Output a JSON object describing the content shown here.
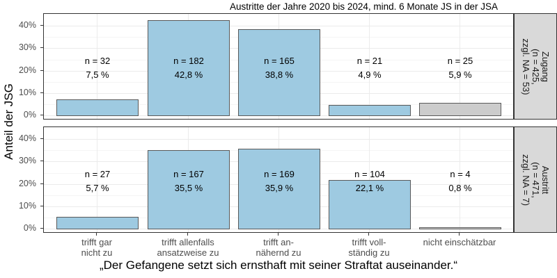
{
  "chart_data": {
    "type": "bar",
    "title": "Austritte der Jahre 2020 bis 2024, mind. 6 Monate JS in der JSA",
    "xlabel": "„Der Gefangene setzt sich ernsthaft mit seiner Straftat auseinander.“",
    "ylabel": "Anteil der JSG",
    "ylim": [
      0,
      45
    ],
    "yticks": [
      "0%",
      "10%",
      "20%",
      "30%",
      "40%"
    ],
    "grid": true,
    "categories": [
      "trifft gar nicht zu",
      "trifft allenfalls ansatzweise zu",
      "trifft annähernd zu",
      "trifft vollständig zu",
      "nicht einschätzbar"
    ],
    "category_labels": [
      [
        "trifft gar",
        "nicht zu"
      ],
      [
        "trifft allenfalls",
        "ansatzweise zu"
      ],
      [
        "trifft an-",
        "nähernd zu"
      ],
      [
        "trifft voll-",
        "ständig zu"
      ],
      [
        "nicht einschätzbar",
        ""
      ]
    ],
    "colors": {
      "answer": "#9ecae1",
      "not_assessable": "#cccccc",
      "strip": "#d9d9d9"
    },
    "series": [
      {
        "name": "Zugang",
        "strip_label": [
          "Zugang",
          "(n = 425,",
          "zzgl. NA = 53)"
        ],
        "n": [
          32,
          182,
          165,
          21,
          25
        ],
        "values": [
          7.5,
          42.8,
          38.8,
          4.9,
          5.9
        ],
        "n_labels": [
          "n = 32",
          "n = 182",
          "n = 165",
          "n = 21",
          "n = 25"
        ],
        "pct_labels": [
          "7,5 %",
          "42,8 %",
          "38,8 %",
          "4,9 %",
          "5,9 %"
        ]
      },
      {
        "name": "Austritt",
        "strip_label": [
          "Austritt",
          "(n = 471,",
          "zzgl. NA = 7)"
        ],
        "n": [
          27,
          167,
          169,
          104,
          4
        ],
        "values": [
          5.7,
          35.5,
          35.9,
          22.1,
          0.8
        ],
        "n_labels": [
          "n = 27",
          "n = 167",
          "n = 169",
          "n = 104",
          "n = 4"
        ],
        "pct_labels": [
          "5,7 %",
          "35,5 %",
          "35,9 %",
          "22,1 %",
          "0,8 %"
        ]
      }
    ]
  }
}
